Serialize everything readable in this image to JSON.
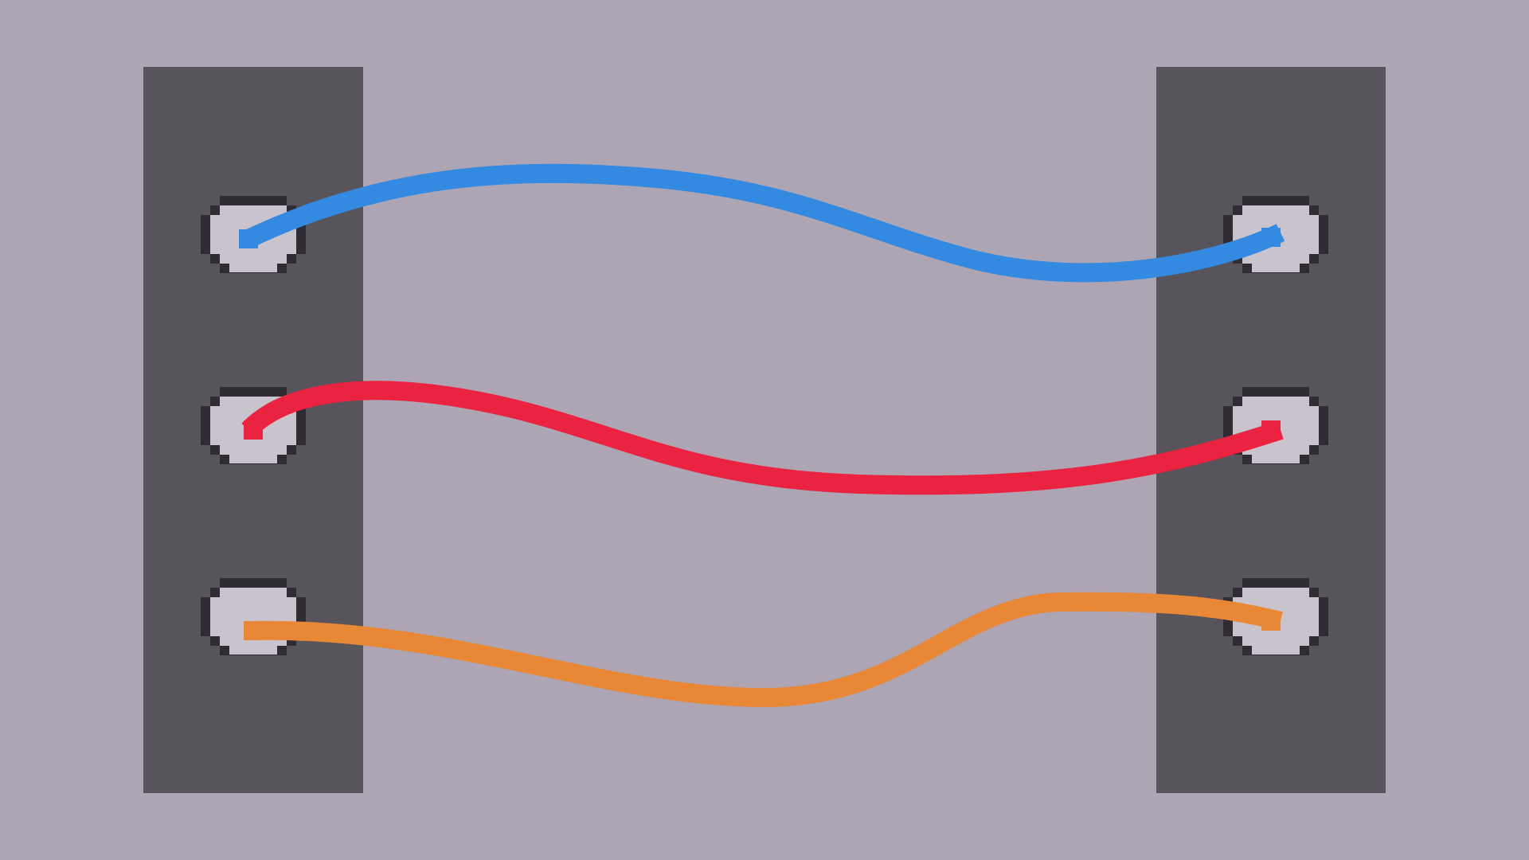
{
  "game": {
    "type": "wire-connection-puzzle",
    "style": "pixel-art",
    "colors": {
      "background": "#ada5b4",
      "panel": "#57545b",
      "port_fill": "#c9c3cd",
      "port_outline": "#2f2c33"
    },
    "left_panel": {
      "ports": [
        {
          "id": "left-port-1",
          "wire_color": "blue"
        },
        {
          "id": "left-port-2",
          "wire_color": "red"
        },
        {
          "id": "left-port-3",
          "wire_color": "orange"
        }
      ]
    },
    "right_panel": {
      "ports": [
        {
          "id": "right-port-1",
          "wire_color": "blue"
        },
        {
          "id": "right-port-2",
          "wire_color": "red"
        },
        {
          "id": "right-port-3",
          "wire_color": "orange"
        }
      ]
    },
    "wires": [
      {
        "name": "blue",
        "color": "#338ae0",
        "from_left_port": 1,
        "to_right_port": 1
      },
      {
        "name": "red",
        "color": "#ea2340",
        "from_left_port": 2,
        "to_right_port": 2
      },
      {
        "name": "orange",
        "color": "#e88736",
        "from_left_port": 3,
        "to_right_port": 3
      }
    ]
  }
}
